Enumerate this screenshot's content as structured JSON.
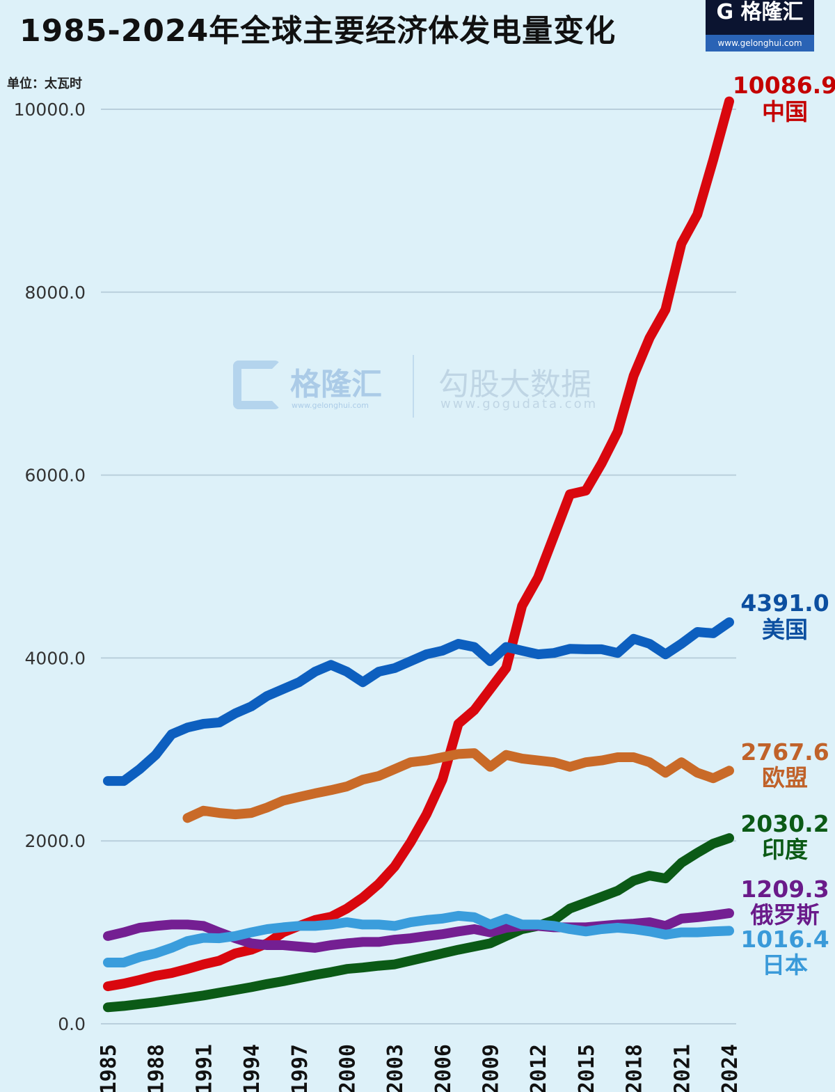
{
  "title": "1985-2024年全球主要经济体发电量变化",
  "logo": {
    "brand": "G 格隆汇",
    "url": "www.gelonghui.com"
  },
  "watermark": {
    "brand1": "格隆汇",
    "url1": "www.gelonghui.com",
    "brand2": "勾股大数据",
    "url2": "www.gogudata.com"
  },
  "chart_data": {
    "type": "line",
    "title": "1985-2024年全球主要经济体发电量变化",
    "unit_label": "单位：太瓦时",
    "xlabel": "",
    "ylabel": "",
    "ylim": [
      0,
      10000
    ],
    "yticks": [
      "0.0",
      "2000.0",
      "4000.0",
      "6000.0",
      "8000.0",
      "10000.0"
    ],
    "xticks": [
      "1985",
      "1988",
      "1991",
      "1994",
      "1997",
      "2000",
      "2003",
      "2006",
      "2009",
      "2012",
      "2015",
      "2018",
      "2021",
      "2024"
    ],
    "grid": "horizontal",
    "x": [
      1985,
      1986,
      1987,
      1988,
      1989,
      1990,
      1991,
      1992,
      1993,
      1994,
      1995,
      1996,
      1997,
      1998,
      1999,
      2000,
      2001,
      2002,
      2003,
      2004,
      2005,
      2006,
      2007,
      2008,
      2009,
      2010,
      2011,
      2012,
      2013,
      2014,
      2015,
      2016,
      2017,
      2018,
      2019,
      2020,
      2021,
      2022,
      2023,
      2024
    ],
    "series": [
      {
        "name": "中国",
        "end_label": "10086.9",
        "color": "#d9070e",
        "label_color": "#c40000",
        "values": [
          410,
          440,
          480,
          525,
          555,
          600,
          650,
          690,
          770,
          810,
          880,
          1000,
          1070,
          1135,
          1170,
          1260,
          1380,
          1530,
          1720,
          1985,
          2290,
          2670,
          3280,
          3430,
          3660,
          3890,
          4570,
          4880,
          5335,
          5790,
          5830,
          6130,
          6475,
          7085,
          7500,
          7810,
          8530,
          8850,
          9450,
          10086.9
        ]
      },
      {
        "name": "美国",
        "end_label": "4391.0",
        "color": "#0d5fbf",
        "label_color": "#0c4fa0",
        "values": [
          2655,
          2655,
          2785,
          2940,
          3165,
          3240,
          3280,
          3295,
          3395,
          3470,
          3585,
          3660,
          3735,
          3850,
          3925,
          3850,
          3735,
          3850,
          3890,
          3965,
          4040,
          4080,
          4155,
          4120,
          3965,
          4120,
          4080,
          4040,
          4055,
          4100,
          4095,
          4095,
          4055,
          4210,
          4155,
          4040,
          4155,
          4285,
          4270,
          4391.0
        ]
      },
      {
        "name": "欧盟",
        "end_label": "2767.6",
        "color": "#c96a28",
        "label_color": "#c0622a",
        "values": [
          null,
          null,
          null,
          null,
          null,
          2250,
          2330,
          2305,
          2290,
          2305,
          2365,
          2440,
          2480,
          2520,
          2555,
          2595,
          2670,
          2710,
          2785,
          2860,
          2880,
          2915,
          2950,
          2960,
          2810,
          2940,
          2900,
          2880,
          2860,
          2810,
          2860,
          2880,
          2915,
          2915,
          2860,
          2745,
          2860,
          2745,
          2685,
          2767.6
        ]
      },
      {
        "name": "印度",
        "end_label": "2030.2",
        "color": "#0b5a16",
        "label_color": "#0b5a16",
        "values": [
          180,
          195,
          215,
          235,
          260,
          285,
          310,
          340,
          370,
          400,
          435,
          465,
          500,
          535,
          565,
          600,
          615,
          635,
          650,
          690,
          730,
          770,
          810,
          845,
          880,
          960,
          1035,
          1070,
          1135,
          1260,
          1325,
          1390,
          1455,
          1565,
          1620,
          1590,
          1760,
          1870,
          1970,
          2030.2
        ]
      },
      {
        "name": "俄罗斯",
        "end_label": "1209.3",
        "color": "#741f92",
        "label_color": "#6a1b8a",
        "values": [
          960,
          1000,
          1050,
          1070,
          1085,
          1085,
          1070,
          1000,
          935,
          880,
          860,
          860,
          845,
          830,
          860,
          880,
          895,
          895,
          920,
          935,
          960,
          980,
          1010,
          1035,
          1000,
          1050,
          1070,
          1070,
          1055,
          1055,
          1055,
          1070,
          1085,
          1095,
          1110,
          1070,
          1150,
          1165,
          1185,
          1209.3
        ]
      },
      {
        "name": "日本",
        "end_label": "1016.4",
        "color": "#3a9ddc",
        "label_color": "#3a9ad9",
        "values": [
          670,
          670,
          730,
          770,
          830,
          905,
          940,
          935,
          960,
          1000,
          1035,
          1055,
          1070,
          1070,
          1085,
          1110,
          1085,
          1085,
          1070,
          1110,
          1135,
          1150,
          1180,
          1165,
          1085,
          1150,
          1085,
          1085,
          1070,
          1035,
          1010,
          1035,
          1050,
          1035,
          1010,
          975,
          1000,
          1000,
          1010,
          1016.4
        ]
      }
    ]
  }
}
